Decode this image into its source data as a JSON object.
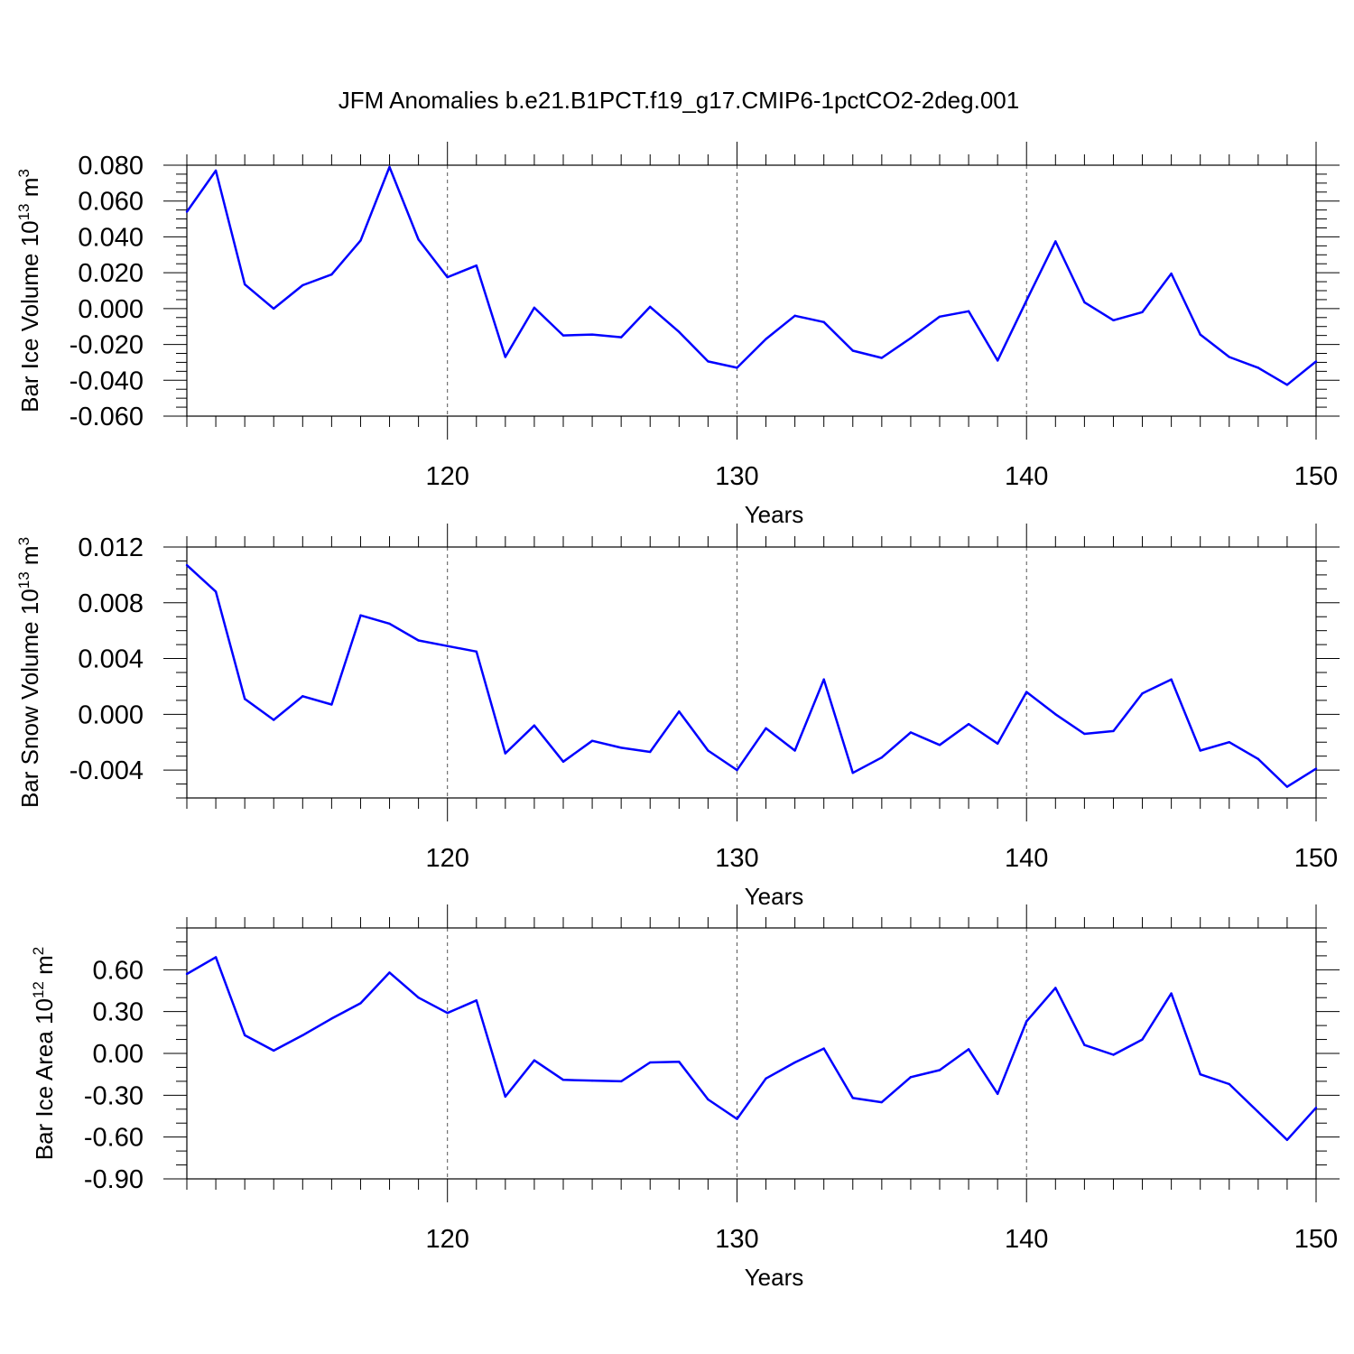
{
  "figure": {
    "title": "JFM Anomalies b.e21.B1PCT.f19_g17.CMIP6-1pctCO2-2deg.001",
    "line_color": "#0000ff"
  },
  "chart_data": [
    {
      "type": "line",
      "title": "",
      "xlabel": "Years",
      "ylabel": "Bar Ice Volume 10",
      "ylabel_sup": "13",
      "ylabel_unit": " m",
      "ylabel_unit_sup": "3",
      "xlim": [
        111,
        150
      ],
      "ylim": [
        -0.06,
        0.08
      ],
      "x_ticks": [
        120,
        130,
        140,
        150
      ],
      "x_tick_labels": [
        "120",
        "130",
        "140",
        "150"
      ],
      "y_ticks": [
        -0.06,
        -0.04,
        -0.02,
        0.0,
        0.02,
        0.04,
        0.06,
        0.08
      ],
      "y_tick_labels": [
        "-0.060",
        "-0.040",
        "-0.020",
        "0.000",
        "0.020",
        "0.040",
        "0.060",
        "0.080"
      ],
      "y_minor_step": 0.005,
      "grid": "vertical dashed at major x ticks",
      "x": [
        111,
        112,
        113,
        114,
        115,
        116,
        117,
        118,
        119,
        120,
        121,
        122,
        123,
        124,
        125,
        126,
        127,
        128,
        129,
        130,
        131,
        132,
        133,
        134,
        135,
        136,
        137,
        138,
        139,
        140,
        141,
        142,
        143,
        144,
        145,
        146,
        147,
        148,
        149,
        150
      ],
      "values": [
        0.054,
        0.077,
        0.0135,
        0.0,
        0.013,
        0.019,
        0.038,
        0.079,
        0.0385,
        0.0175,
        0.024,
        -0.027,
        0.0005,
        -0.015,
        -0.0145,
        -0.016,
        0.001,
        -0.013,
        -0.0295,
        -0.033,
        -0.017,
        -0.004,
        -0.0075,
        -0.0235,
        -0.0275,
        -0.0165,
        -0.0045,
        -0.0015,
        -0.029,
        0.0045,
        0.0375,
        0.0035,
        -0.0065,
        -0.002,
        0.0195,
        -0.0145,
        -0.027,
        -0.033,
        -0.0425,
        -0.0295
      ]
    },
    {
      "type": "line",
      "title": "",
      "xlabel": "Years",
      "ylabel": "Bar Snow Volume 10",
      "ylabel_sup": "13",
      "ylabel_unit": " m",
      "ylabel_unit_sup": "3",
      "xlim": [
        111,
        150
      ],
      "ylim": [
        -0.006,
        0.012
      ],
      "x_ticks": [
        120,
        130,
        140,
        150
      ],
      "x_tick_labels": [
        "120",
        "130",
        "140",
        "150"
      ],
      "y_ticks": [
        -0.004,
        0.0,
        0.004,
        0.008,
        0.012
      ],
      "y_tick_labels": [
        "-0.004",
        "0.000",
        "0.004",
        "0.008",
        "0.012"
      ],
      "y_minor_step": 0.001,
      "grid": "vertical dashed at major x ticks",
      "x": [
        111,
        112,
        113,
        114,
        115,
        116,
        117,
        118,
        119,
        120,
        121,
        122,
        123,
        124,
        125,
        126,
        127,
        128,
        129,
        130,
        131,
        132,
        133,
        134,
        135,
        136,
        137,
        138,
        139,
        140,
        141,
        142,
        143,
        144,
        145,
        146,
        147,
        148,
        149,
        150
      ],
      "values": [
        0.0107,
        0.0088,
        0.0011,
        -0.0004,
        0.0013,
        0.0007,
        0.0071,
        0.0065,
        0.0053,
        0.0049,
        0.0045,
        -0.0028,
        -0.0008,
        -0.0034,
        -0.0019,
        -0.0024,
        -0.0027,
        0.0002,
        -0.0026,
        -0.004,
        -0.001,
        -0.0026,
        0.0025,
        -0.0042,
        -0.0031,
        -0.0013,
        -0.0022,
        -0.0007,
        -0.0021,
        0.0016,
        0.0,
        -0.0014,
        -0.0012,
        0.0015,
        0.0025,
        -0.0026,
        -0.002,
        -0.0032,
        -0.0052,
        -0.0039
      ]
    },
    {
      "type": "line",
      "title": "",
      "xlabel": "Years",
      "ylabel": "Bar Ice Area 10",
      "ylabel_sup": "12",
      "ylabel_unit": " m",
      "ylabel_unit_sup": "2",
      "xlim": [
        111,
        150
      ],
      "ylim": [
        -0.9,
        0.9
      ],
      "x_ticks": [
        120,
        130,
        140,
        150
      ],
      "x_tick_labels": [
        "120",
        "130",
        "140",
        "150"
      ],
      "y_ticks": [
        -0.9,
        -0.6,
        -0.3,
        0.0,
        0.3,
        0.6
      ],
      "y_tick_labels": [
        "-0.90",
        "-0.60",
        "-0.30",
        "0.00",
        "0.30",
        "0.60"
      ],
      "y_minor_step": 0.1,
      "grid": "vertical dashed at major x ticks",
      "x": [
        111,
        112,
        113,
        114,
        115,
        116,
        117,
        118,
        119,
        120,
        121,
        122,
        123,
        124,
        125,
        126,
        127,
        128,
        129,
        130,
        131,
        132,
        133,
        134,
        135,
        136,
        137,
        138,
        139,
        140,
        141,
        142,
        143,
        144,
        145,
        146,
        147,
        148,
        149,
        150
      ],
      "values": [
        0.57,
        0.69,
        0.13,
        0.02,
        0.13,
        0.25,
        0.36,
        0.58,
        0.4,
        0.29,
        0.38,
        -0.31,
        -0.05,
        -0.19,
        -0.195,
        -0.2,
        -0.065,
        -0.06,
        -0.33,
        -0.47,
        -0.18,
        -0.065,
        0.035,
        -0.32,
        -0.35,
        -0.17,
        -0.12,
        0.03,
        -0.29,
        0.23,
        0.47,
        0.06,
        -0.01,
        0.1,
        0.43,
        -0.15,
        -0.22,
        -0.42,
        -0.62,
        -0.39
      ]
    }
  ]
}
